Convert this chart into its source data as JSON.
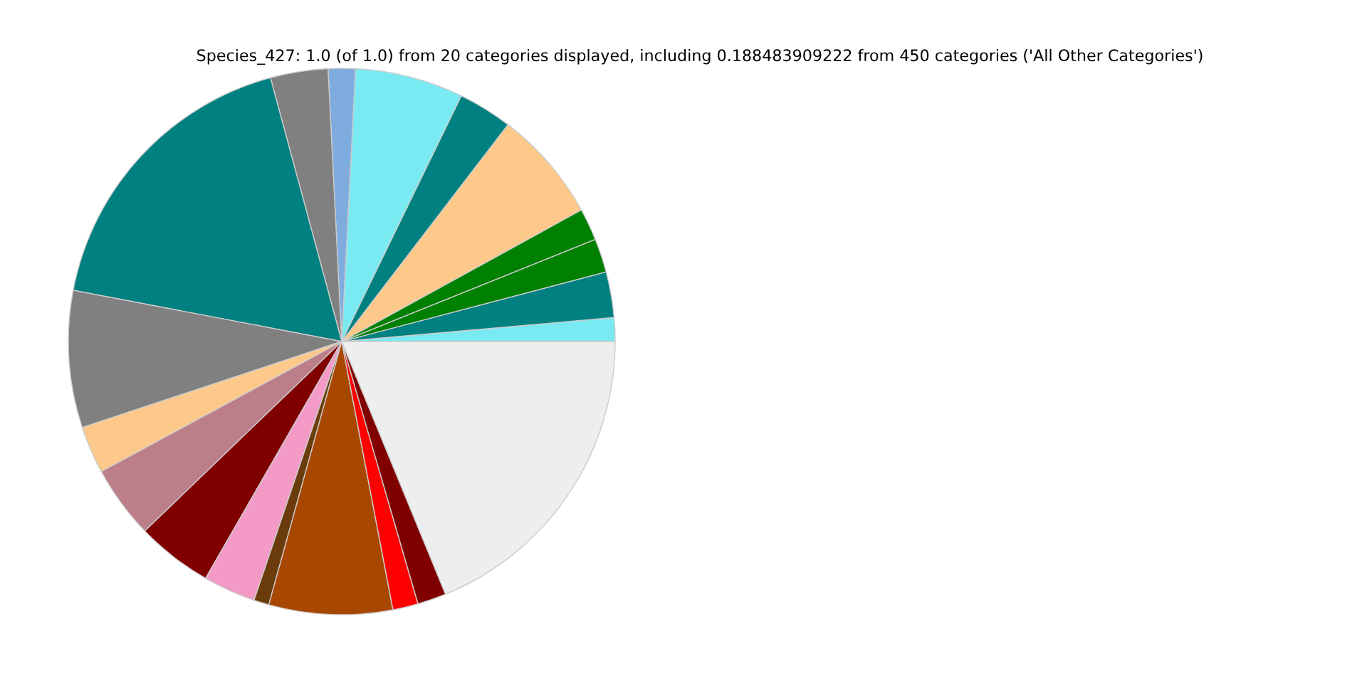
{
  "chart_data": {
    "type": "pie",
    "title": "Species_427: 1.0 (of 1.0) from 20 categories displayed, including 0.188483909222 from 450 categories ('All Other Categories')",
    "categories": [
      null,
      null,
      null,
      null,
      null,
      null,
      null,
      null,
      null,
      null,
      null,
      null,
      null,
      null,
      null,
      null,
      null,
      null,
      null,
      null
    ],
    "values": [
      1.4,
      2.7,
      2.0,
      1.9,
      6.6,
      3.2,
      6.4,
      1.6,
      3.4,
      17.8,
      8.1,
      2.8,
      4.3,
      4.5,
      3.1,
      0.9,
      7.3,
      1.5,
      1.7,
      18.8
    ],
    "colors": [
      "#7aeaf2",
      "#008080",
      "#008000",
      "#008000",
      "#fdc98a",
      "#008080",
      "#7aeaf2",
      "#7eacdf",
      "#808080",
      "#008080",
      "#808080",
      "#fdc98a",
      "#bc7f8a",
      "#800000",
      "#f49ac6",
      "#6b3c0b",
      "#a84700",
      "#ff0000",
      "#800000",
      "#eeeeee"
    ]
  }
}
